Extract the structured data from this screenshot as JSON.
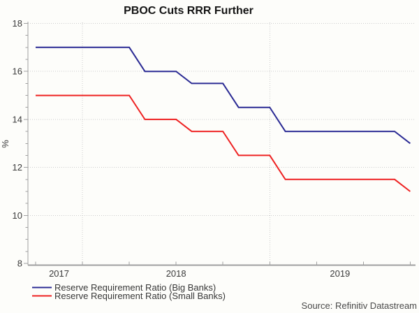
{
  "title": "PBOC Cuts RRR Further",
  "y_axis_label": "%",
  "source": "Source: Refinitiv Datastream",
  "legend": [
    {
      "label": "Reserve Requirement Ratio (Big Banks)",
      "color": "#2b2b94"
    },
    {
      "label": "Reserve Requirement Ratio (Small Banks)",
      "color": "#ee2222"
    }
  ],
  "colors": {
    "big_banks_line": "#2b2b94",
    "small_banks_line": "#ee2222",
    "axis": "#a0a0a0",
    "gridline": "#cdcdcd",
    "background": "#fdfdfa"
  },
  "chart_data": {
    "type": "line",
    "title": "PBOC Cuts RRR Further",
    "ylabel": "%",
    "ylim": [
      8,
      18
    ],
    "y_major_ticks": [
      8,
      10,
      12,
      14,
      16,
      18
    ],
    "y_minor_step": 0.5,
    "x_year_labels": [
      "2017",
      "2018",
      "2019"
    ],
    "x_tick_interval": "quarter",
    "year_gridlines": [
      "2018-01",
      "2019-01"
    ],
    "grid": {
      "horizontal": true,
      "vertical_at_year_start": true,
      "style": "dotted"
    },
    "legend_position": "bottom-left",
    "x": [
      "2017-10",
      "2017-11",
      "2017-12",
      "2018-01",
      "2018-02",
      "2018-03",
      "2018-04",
      "2018-05",
      "2018-06",
      "2018-07",
      "2018-08",
      "2018-09",
      "2018-10",
      "2018-11",
      "2018-12",
      "2019-01",
      "2019-02",
      "2019-03",
      "2019-04",
      "2019-05",
      "2019-06",
      "2019-07",
      "2019-08",
      "2019-09",
      "2019-10"
    ],
    "series": [
      {
        "name": "Reserve Requirement Ratio (Big Banks)",
        "color": "#2b2b94",
        "values": [
          17,
          17,
          17,
          17,
          17,
          17,
          17,
          16,
          16,
          16,
          15.5,
          15.5,
          15.5,
          14.5,
          14.5,
          14.5,
          13.5,
          13.5,
          13.5,
          13.5,
          13.5,
          13.5,
          13.5,
          13.5,
          13
        ]
      },
      {
        "name": "Reserve Requirement Ratio (Small Banks)",
        "color": "#ee2222",
        "values": [
          15,
          15,
          15,
          15,
          15,
          15,
          15,
          14,
          14,
          14,
          13.5,
          13.5,
          13.5,
          12.5,
          12.5,
          12.5,
          11.5,
          11.5,
          11.5,
          11.5,
          11.5,
          11.5,
          11.5,
          11.5,
          11
        ]
      }
    ]
  }
}
